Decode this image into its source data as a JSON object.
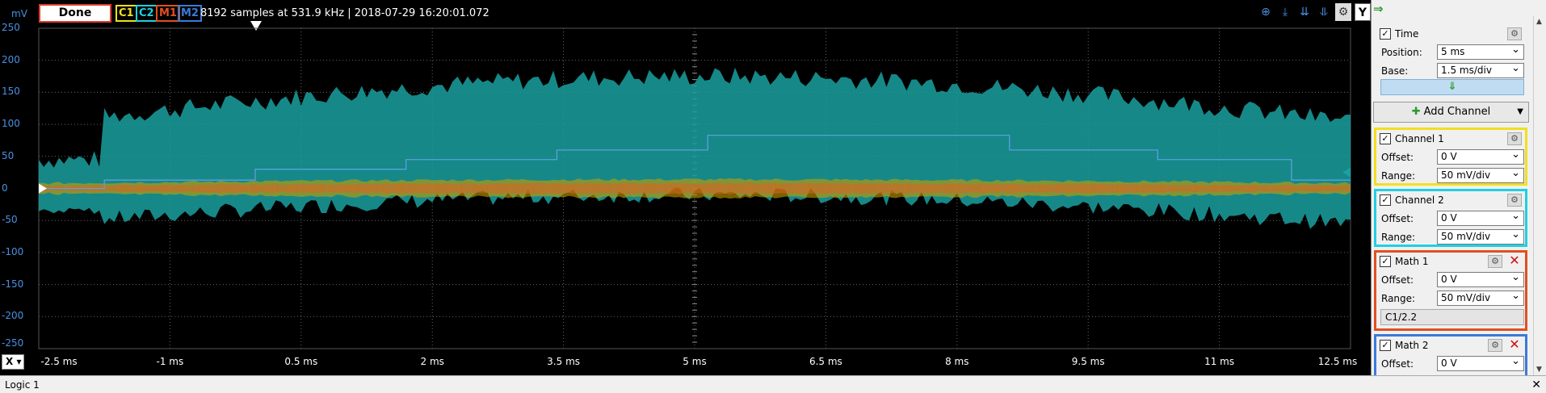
{
  "topbar": {
    "unit": "mV",
    "status": "Done",
    "channel_tags": [
      {
        "label": "C1",
        "color": "#f0e020"
      },
      {
        "label": "C2",
        "color": "#20d0e0"
      },
      {
        "label": "M1",
        "color": "#e05020"
      },
      {
        "label": "M2",
        "color": "#3a7ad8"
      }
    ],
    "info": "8192 samples at 531.9 kHz | 2018-07-29 16:20:01.072",
    "y_button": "Y"
  },
  "plot": {
    "y_ticks": [
      "250",
      "200",
      "150",
      "100",
      "50",
      "0",
      "-50",
      "-100",
      "-150",
      "-200",
      "-250"
    ],
    "x_ticks": [
      "-2.5 ms",
      "-1 ms",
      "0.5 ms",
      "2 ms",
      "3.5 ms",
      "5 ms",
      "6.5 ms",
      "8 ms",
      "9.5 ms",
      "11 ms",
      "12.5 ms"
    ],
    "x_button": "X",
    "colors": {
      "c1": "#c8a000",
      "c2": "#1aa0a0",
      "m1": "#e06020",
      "m2": "#5aa0e0"
    }
  },
  "panel": {
    "time": {
      "title": "Time",
      "position_label": "Position:",
      "position_value": "5 ms",
      "base_label": "Base:",
      "base_value": "1.5 ms/div"
    },
    "add_channel": "Add Channel",
    "channel1": {
      "title": "Channel 1",
      "offset_label": "Offset:",
      "offset_value": "0 V",
      "range_label": "Range:",
      "range_value": "50 mV/div",
      "color": "#f0e020"
    },
    "channel2": {
      "title": "Channel 2",
      "offset_label": "Offset:",
      "offset_value": "0 V",
      "range_label": "Range:",
      "range_value": "50 mV/div",
      "color": "#20d0e0"
    },
    "math1": {
      "title": "Math 1",
      "offset_label": "Offset:",
      "offset_value": "0 V",
      "range_label": "Range:",
      "range_value": "50 mV/div",
      "expression": "C1/2.2",
      "color": "#e05020"
    },
    "math2": {
      "title": "Math 2",
      "offset_label": "Offset:",
      "offset_value": "0 V",
      "color": "#3a7ad8"
    }
  },
  "logic": {
    "title": "Logic 1"
  }
}
